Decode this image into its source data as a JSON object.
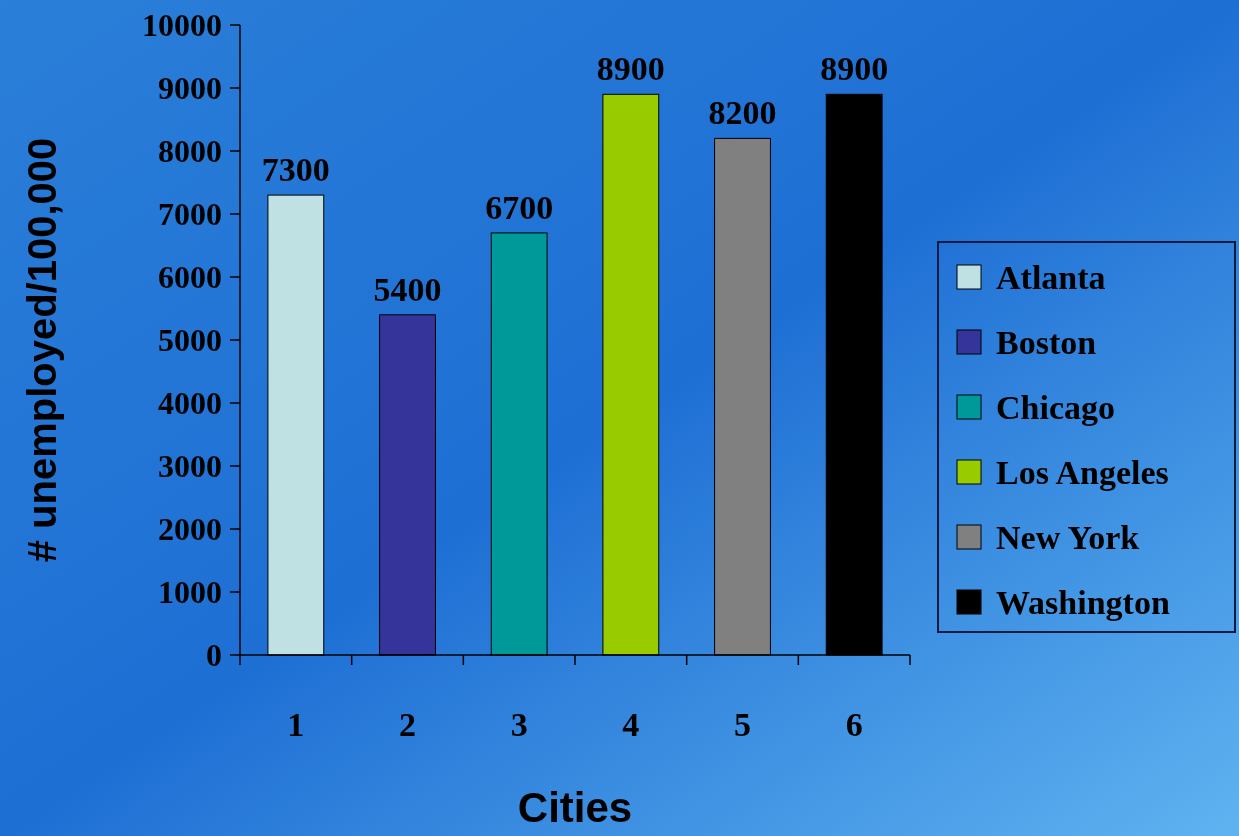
{
  "chart_data": {
    "type": "bar",
    "xlabel": "Cities",
    "ylabel": "# unemployed/100,000",
    "categories": [
      "1",
      "2",
      "3",
      "4",
      "5",
      "6"
    ],
    "series": [
      {
        "name": "Atlanta",
        "color": "#bfe1e3",
        "values": [
          7300,
          null,
          null,
          null,
          null,
          null
        ]
      },
      {
        "name": "Boston",
        "color": "#35349a",
        "values": [
          null,
          5400,
          null,
          null,
          null,
          null
        ]
      },
      {
        "name": "Chicago",
        "color": "#009999",
        "values": [
          null,
          null,
          6700,
          null,
          null,
          null
        ]
      },
      {
        "name": "Los Angeles",
        "color": "#99cc00",
        "values": [
          null,
          null,
          null,
          8900,
          null,
          null
        ]
      },
      {
        "name": "New York",
        "color": "#808080",
        "values": [
          null,
          null,
          null,
          null,
          8200,
          null
        ]
      },
      {
        "name": "Washington",
        "color": "#000000",
        "values": [
          null,
          null,
          null,
          null,
          null,
          8900
        ]
      }
    ],
    "ylim": [
      0,
      10000
    ],
    "yticks": [
      0,
      1000,
      2000,
      3000,
      4000,
      5000,
      6000,
      7000,
      8000,
      9000,
      10000
    ],
    "data_labels": true,
    "grid": false,
    "legend": "right"
  }
}
